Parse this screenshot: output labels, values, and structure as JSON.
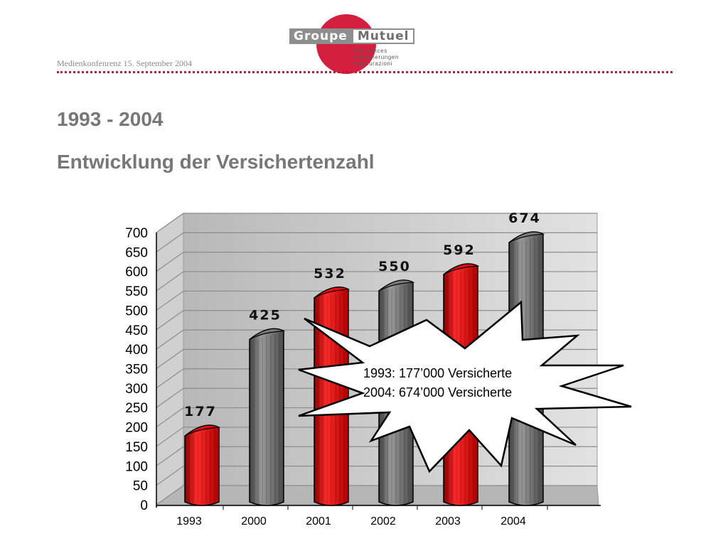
{
  "header": {
    "note": "Medienkonfenrenz 15. September 2004",
    "logo": {
      "word1": "Groupe",
      "word2": "Mutuel",
      "sub1": "Assurances",
      "sub2": "Versicherungen",
      "sub3": "Assicurazioni",
      "circle_color": "#d51f3f"
    }
  },
  "titles": {
    "line1": "1993 - 2004",
    "line2": "Entwicklung der Versichertenzahl"
  },
  "chart_data": {
    "type": "bar",
    "categories": [
      "1993",
      "2000",
      "2001",
      "2002",
      "2003",
      "2004"
    ],
    "values": [
      177,
      425,
      532,
      550,
      592,
      674
    ],
    "bar_colors": [
      "#e01010",
      "#7a7a7a",
      "#e01010",
      "#7a7a7a",
      "#e01010",
      "#7a7a7a"
    ],
    "ylim": [
      0,
      700
    ],
    "yticks": [
      0,
      50,
      100,
      150,
      200,
      250,
      300,
      350,
      400,
      450,
      500,
      550,
      600,
      650,
      700
    ],
    "grid": true,
    "legend": "none",
    "callout": {
      "line1": "1993:  177’000 Versicherte",
      "line2": "2004:  674’000 Versicherte"
    }
  }
}
